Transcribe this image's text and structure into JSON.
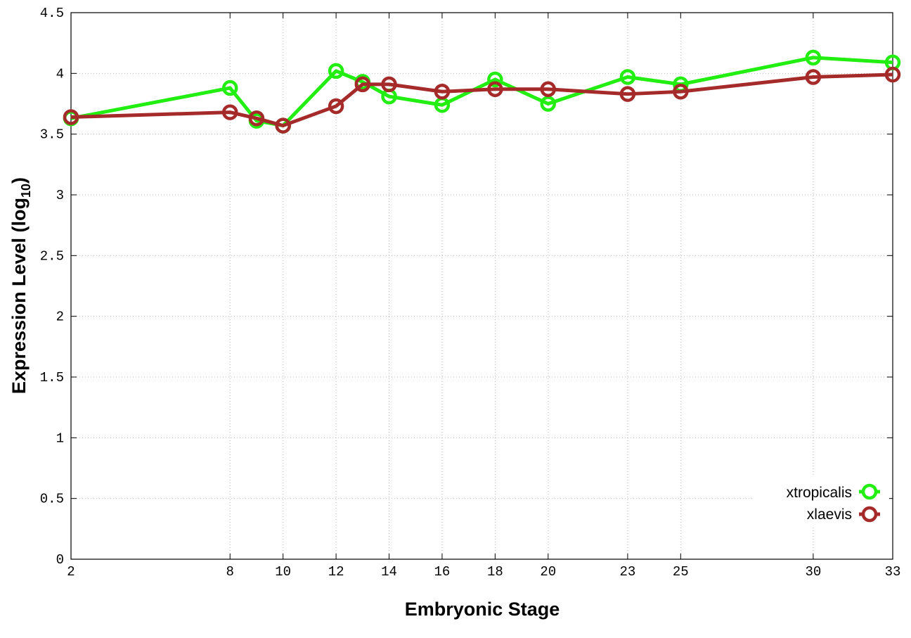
{
  "chart_data": {
    "type": "line",
    "xlabel": "Embryonic Stage",
    "ylabel": "Expression Level (log",
    "ylabel_sub": "10",
    "ylabel_close": ")",
    "x_categories": [
      "2",
      "8",
      "9",
      "10",
      "12",
      "13",
      "14",
      "16",
      "18",
      "20",
      "23",
      "25",
      "30",
      "33"
    ],
    "x_tick_labels": [
      "2",
      "8",
      "10",
      "12",
      "14",
      "16",
      "18",
      "20",
      "23",
      "25",
      "30",
      "33"
    ],
    "y_ticks": [
      "0",
      "0.5",
      "1",
      "1.5",
      "2",
      "2.5",
      "3",
      "3.5",
      "4",
      "4.5"
    ],
    "ylim": [
      0,
      4.5
    ],
    "grid": true,
    "legend_position": "bottom-right",
    "series": [
      {
        "name": "xtropicalis",
        "color": "#22ee11",
        "values": [
          3.63,
          3.88,
          3.61,
          3.57,
          4.02,
          3.93,
          3.81,
          3.74,
          3.95,
          3.75,
          3.97,
          3.91,
          4.13,
          4.09
        ]
      },
      {
        "name": "xlaevis",
        "color": "#a52a2a",
        "values": [
          3.64,
          3.68,
          3.63,
          3.57,
          3.73,
          3.91,
          3.91,
          3.85,
          3.87,
          3.87,
          3.83,
          3.85,
          3.97,
          3.99
        ]
      }
    ]
  }
}
